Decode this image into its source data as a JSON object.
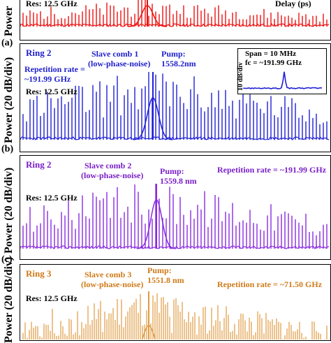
{
  "chart_data": [
    {
      "type": "line",
      "panel_label": "(a)",
      "ylabel": "Power",
      "annotations": {
        "res": "Res:  12.5 GHz",
        "delay": "Delay (ps)"
      },
      "color": "#ee1111",
      "note": "top of panel cropped in original"
    },
    {
      "type": "line",
      "panel_label": "(b)",
      "ylabel": "Power (20 dB/div)",
      "annotations": {
        "ring": "Ring 2",
        "slave": "Slave comb 1",
        "slave_sub": "(low-phase-noise)",
        "pump": "Pump:",
        "pump_wl": "1558.2nm",
        "rep_line1": "Repetition rate =",
        "rep_line2": "~191.99 GHz",
        "res": "Res:  12.5 GHz"
      },
      "inset": {
        "span": "Span = 10 MHz",
        "fc": "fc = ~191.99 GHz",
        "ylabel": "10 dB/div"
      },
      "color": "#1f1fd6"
    },
    {
      "type": "line",
      "panel_label": "(c)",
      "ylabel": "Power (20 dB/div)",
      "annotations": {
        "ring": "Ring 2",
        "slave": "Slave comb 2",
        "slave_sub": "(low-phase-noise)",
        "pump": "Pump:",
        "pump_wl": "1559.8 nm",
        "rep": "Repetition rate = ~191.99 GHz",
        "res": "Res:  12.5 GHz"
      },
      "color": "#8a2be2"
    },
    {
      "type": "line",
      "panel_label": "",
      "ylabel": "Power (20 dB/div)",
      "annotations": {
        "ring": "Ring 3",
        "slave": "Slave comb 3",
        "slave_sub": "(low-phase-noise)",
        "pump": "Pump:",
        "pump_wl": "1551.8 nm",
        "rep": "Repetition rate = ~71.50 GHz",
        "res": "Res:  12.5 GHz"
      },
      "color": "#e09a40",
      "note": "bottom of panel cropped in original"
    }
  ]
}
